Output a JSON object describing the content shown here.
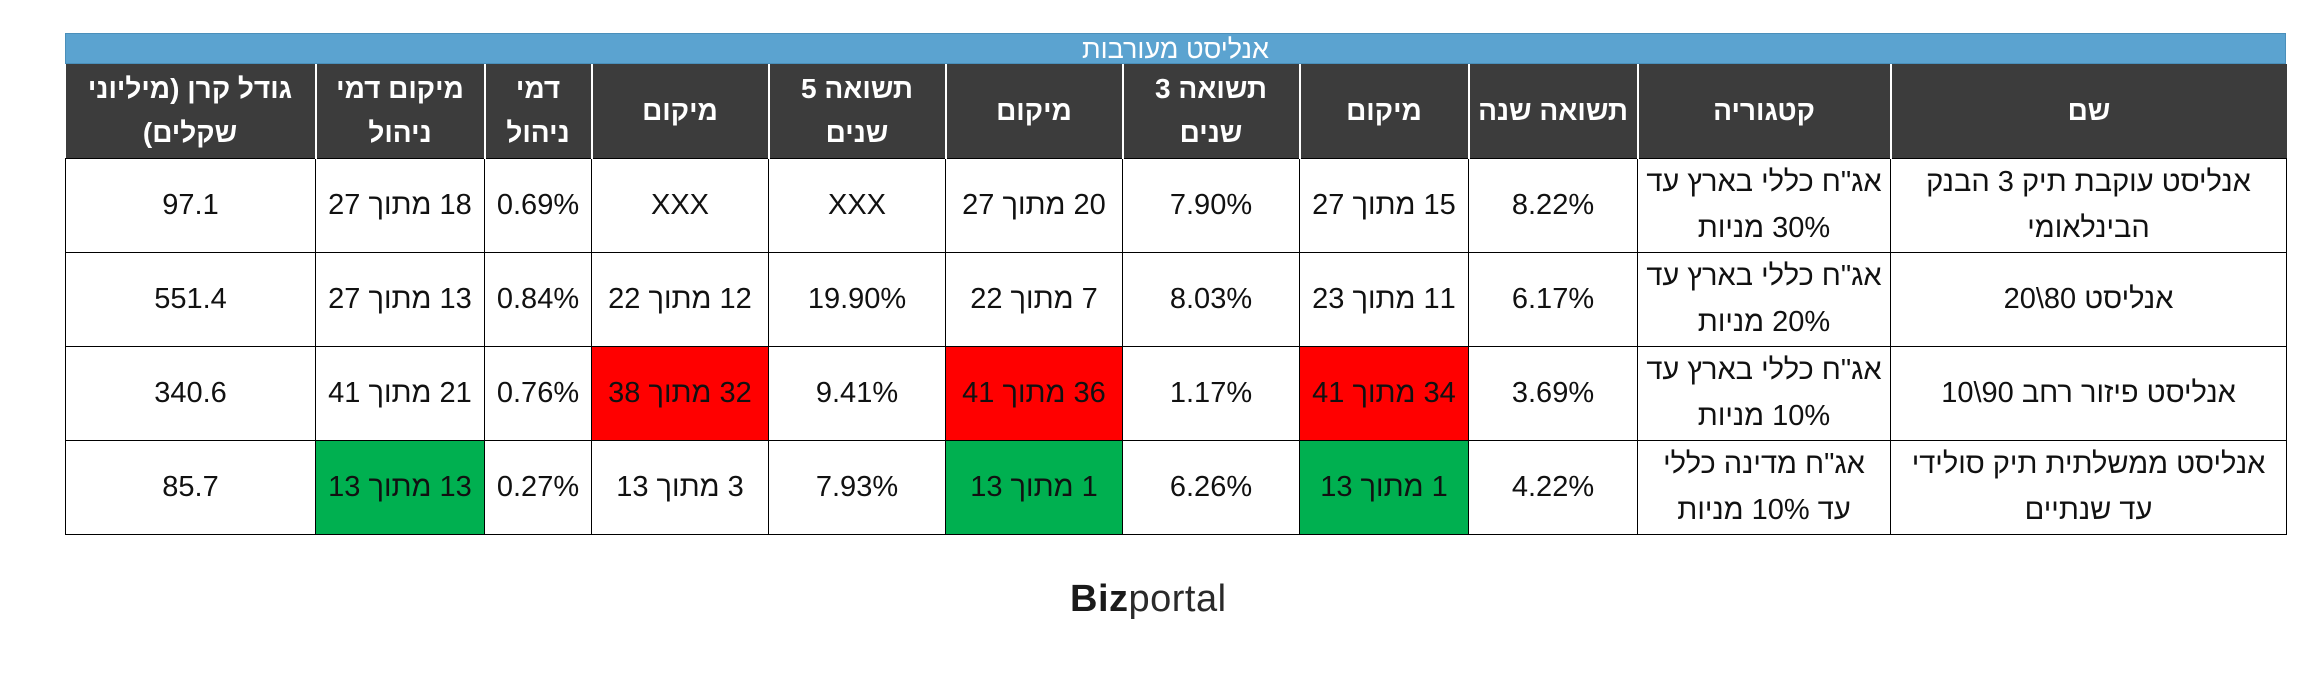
{
  "title": "אנליסט מעורבות",
  "columns": [
    "שם",
    "קטגוריה",
    "תשואה שנה",
    "מיקום",
    "תשואה 3 שנים",
    "מיקום",
    "תשואה 5 שנים",
    "מיקום",
    "דמי ניהול",
    "מיקום דמי ניהול",
    "גודל קרן (מיליוני שקלים)"
  ],
  "rows": [
    {
      "name": "אנליסט עוקבת תיק 3 הבנק הבינלאומי",
      "category": "אג\"ח כללי בארץ עד 30% מניות",
      "return_1y": "8.22%",
      "rank_1y": "15 מתוך 27",
      "return_3y": "7.90%",
      "rank_3y": "20 מתוך 27",
      "return_5y": "XXX",
      "rank_5y": "XXX",
      "fee": "0.69%",
      "fee_rank": "18 מתוך 27",
      "size": "97.1"
    },
    {
      "name": "אנליסט 80\\20",
      "category": "אג\"ח כללי בארץ עד 20% מניות",
      "return_1y": "6.17%",
      "rank_1y": "11 מתוך  23",
      "return_3y": "8.03%",
      "rank_3y": "7 מתוך 22",
      "return_5y": "19.90%",
      "rank_5y": "12 מתוך 22",
      "fee": "0.84%",
      "fee_rank": "13 מתוך 27",
      "size": "551.4"
    },
    {
      "name": "אנליסט פיזור רחב 90\\10",
      "category": "אג\"ח כללי בארץ עד 10% מניות",
      "return_1y": "3.69%",
      "rank_1y": "34 מתוך 41",
      "return_3y": "1.17%",
      "rank_3y": "36 מתוך 41",
      "return_5y": "9.41%",
      "rank_5y": "32 מתוך 38",
      "fee": "0.76%",
      "fee_rank": "21 מתוך 41",
      "size": "340.6"
    },
    {
      "name": "אנליסט ממשלתית תיק סולידי עד שנתיים",
      "category": "אג\"ח מדינה כללי עד 10% מניות",
      "return_1y": "4.22%",
      "rank_1y": "1 מתוך 13",
      "return_3y": "6.26%",
      "rank_3y": "1 מתוך 13",
      "return_5y": "7.93%",
      "rank_5y": "3 מתוך 13",
      "fee": "0.27%",
      "fee_rank": "13 מתוך 13",
      "size": "85.7"
    }
  ],
  "highlight_colors": {
    "red": "#ff0000",
    "green": "#00b050"
  },
  "logo": {
    "bold": "Biz",
    "light": "portal"
  }
}
